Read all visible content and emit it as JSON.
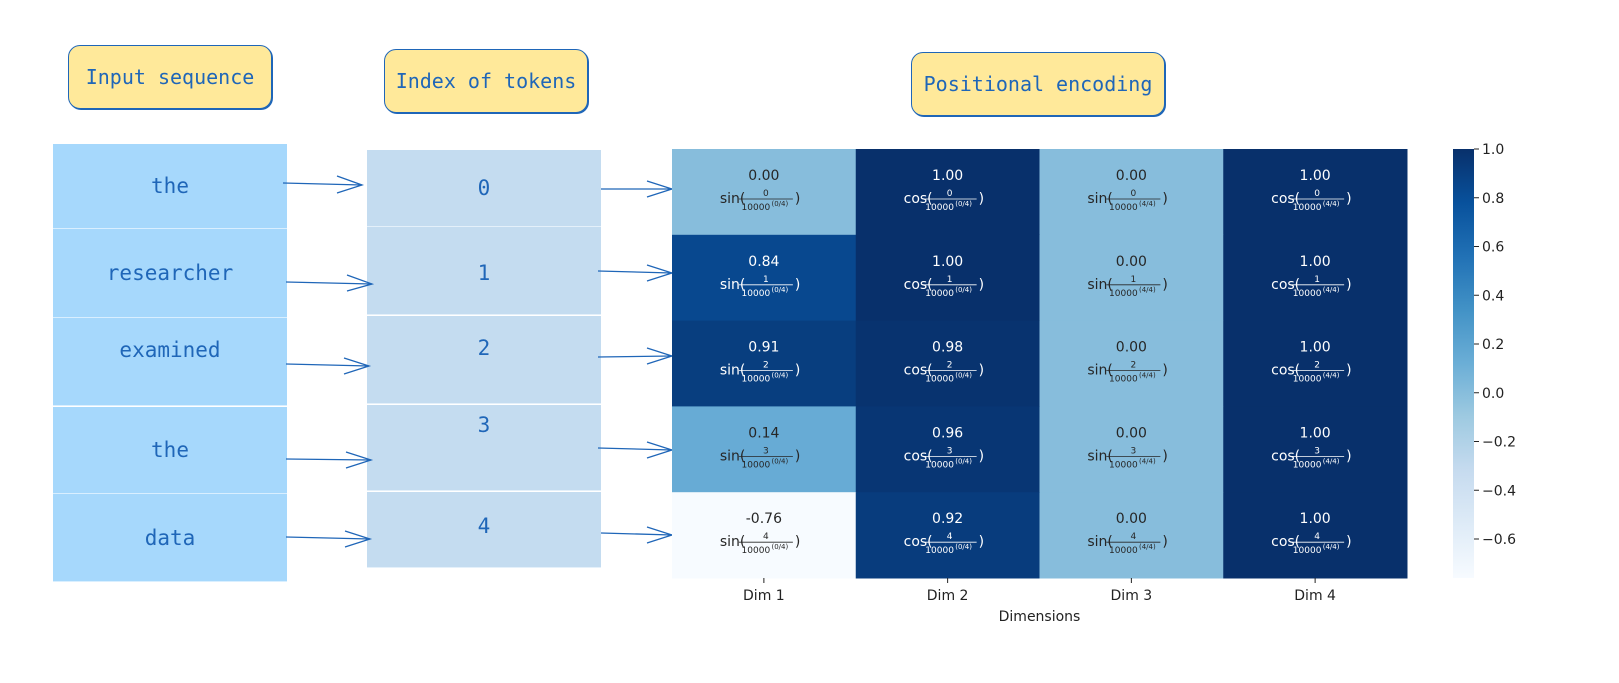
{
  "headers": {
    "input": "Input sequence",
    "index": "Index of tokens",
    "positional": "Positional encoding"
  },
  "tokens": [
    "the",
    "researcher",
    "examined",
    "the",
    "data"
  ],
  "indices": [
    "0",
    "1",
    "2",
    "3",
    "4"
  ],
  "chart_data": {
    "type": "heatmap",
    "xlabel": "Dimensions",
    "x_categories": [
      "Dim 1",
      "Dim 2",
      "Dim 3",
      "Dim 4"
    ],
    "rows": [
      {
        "values": [
          0.0,
          1.0,
          0.0,
          1.0
        ],
        "labels": [
          "0.00",
          "1.00",
          "0.00",
          "1.00"
        ],
        "numerator": "0"
      },
      {
        "values": [
          0.84,
          1.0,
          0.0,
          1.0
        ],
        "labels": [
          "0.84",
          "1.00",
          "0.00",
          "1.00"
        ],
        "numerator": "1"
      },
      {
        "values": [
          0.91,
          0.98,
          0.0,
          1.0
        ],
        "labels": [
          "0.91",
          "0.98",
          "0.00",
          "1.00"
        ],
        "numerator": "2"
      },
      {
        "values": [
          0.14,
          0.96,
          0.0,
          1.0
        ],
        "labels": [
          "0.14",
          "0.96",
          "0.00",
          "1.00"
        ],
        "numerator": "3"
      },
      {
        "values": [
          -0.76,
          0.92,
          0.0,
          1.0
        ],
        "labels": [
          "-0.76",
          "0.92",
          "0.00",
          "1.00"
        ],
        "numerator": "4"
      }
    ],
    "functions": [
      "sin",
      "cos",
      "sin",
      "cos"
    ],
    "exponents": [
      "(0/4)",
      "(0/4)",
      "(4/4)",
      "(4/4)"
    ],
    "denominator": "10000",
    "colormap": "Blues",
    "vmin": -0.76,
    "vmax": 1.0,
    "colorbar_ticks": [
      "1.0",
      "0.8",
      "0.6",
      "0.4",
      "0.2",
      "0.0",
      "−0.2",
      "−0.4",
      "−0.6"
    ],
    "colorbar_tick_values": [
      1.0,
      0.8,
      0.6,
      0.4,
      0.2,
      0.0,
      -0.2,
      -0.4,
      -0.6
    ]
  }
}
